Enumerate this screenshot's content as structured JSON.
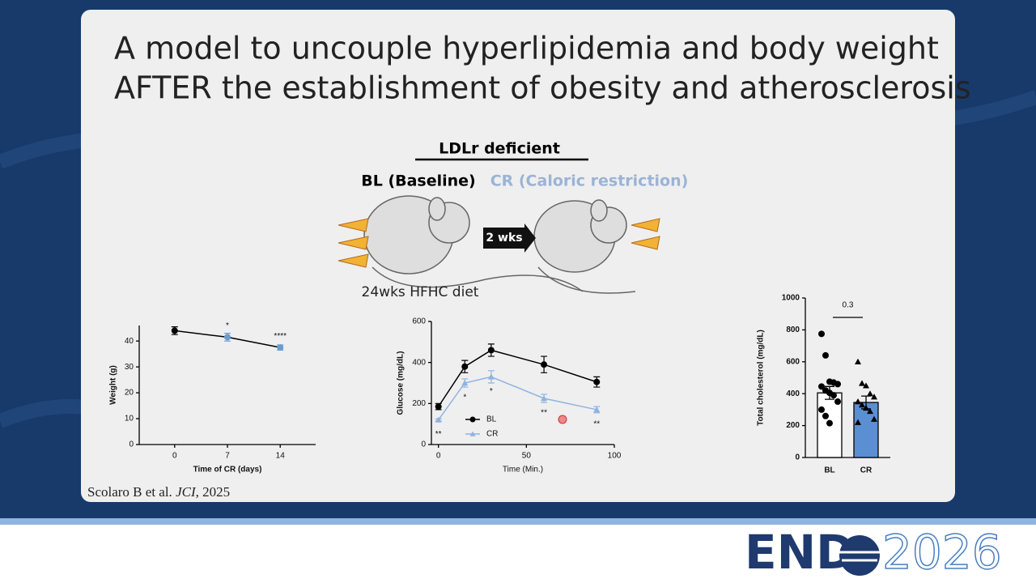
{
  "title_lines": [
    "A model to uncouple hyperlipidemia and body weight",
    "AFTER the establishment of obesity and atherosclerosis"
  ],
  "diagram": {
    "header": "LDLr deficient",
    "left_label": "BL (Baseline)",
    "right_label": "CR (Caloric restriction)",
    "arrow_label": "2 wks",
    "diet_label": "24wks HFHC diet"
  },
  "citation": {
    "authors": "Scolaro B et al.",
    "journal": "JCI",
    "year": ", 2025"
  },
  "logo": {
    "word": "END",
    "year": "2026"
  },
  "chart_data": [
    {
      "type": "line",
      "xlabel": "Time of CR (days)",
      "ylabel": "Weight (g)",
      "xlim": [
        -4.7,
        18.7
      ],
      "xticks": [
        0,
        7,
        14
      ],
      "ylim": [
        0,
        46
      ],
      "yticks": [
        0,
        10,
        20,
        30,
        40
      ],
      "series": [
        {
          "x": [
            0,
            7,
            14
          ],
          "values": [
            44,
            41.5,
            37.5
          ],
          "errors": [
            1.5,
            1.5,
            1
          ],
          "color": "#000000",
          "marker": "circle",
          "marker_colors": [
            "#000000",
            "#6a9bd1",
            "#6a9bd1"
          ]
        }
      ],
      "annotations": [
        {
          "text": "*",
          "x": 7,
          "series": 0,
          "position": "above"
        },
        {
          "text": "****",
          "x": 14,
          "series": 0,
          "position": "above"
        }
      ]
    },
    {
      "type": "line",
      "xlabel": "Time (Min.)",
      "ylabel": "Glucose (mg/dL)",
      "xlim": [
        -4,
        100
      ],
      "xticks": [
        0,
        50,
        100
      ],
      "ylim": [
        0,
        600
      ],
      "yticks": [
        0,
        200,
        400,
        600
      ],
      "legend": "lower left",
      "series": [
        {
          "name": "BL",
          "x": [
            0,
            15,
            30,
            60,
            90
          ],
          "values": [
            185,
            380,
            460,
            390,
            305
          ],
          "errors": [
            15,
            30,
            30,
            40,
            25
          ],
          "color": "#000000",
          "marker": "circle"
        },
        {
          "name": "CR",
          "x": [
            0,
            15,
            30,
            60,
            90
          ],
          "values": [
            120,
            300,
            330,
            225,
            170
          ],
          "errors": [
            5,
            20,
            30,
            20,
            15
          ],
          "color": "#8fb3e0",
          "marker": "triangle"
        }
      ],
      "annotations": [
        {
          "text": "**",
          "x": 0,
          "series": 1,
          "position": "below"
        },
        {
          "text": "*",
          "x": 15,
          "series": 1,
          "position": "below"
        },
        {
          "text": "*",
          "x": 30,
          "series": 1,
          "position": "below"
        },
        {
          "text": "**",
          "x": 60,
          "series": 1,
          "position": "below"
        },
        {
          "text": "**",
          "x": 90,
          "series": 1,
          "position": "below"
        }
      ]
    },
    {
      "type": "bar",
      "ylabel": "Total cholesterol (mg/dL)",
      "categories": [
        "BL",
        "CR"
      ],
      "values": [
        405,
        345
      ],
      "errors": [
        40,
        40
      ],
      "colors": [
        "#ffffff",
        "#5b8fd4"
      ],
      "markers": [
        "circle",
        "triangle"
      ],
      "points": [
        [
          775,
          640,
          475,
          470,
          460,
          445,
          420,
          405,
          390,
          350,
          300,
          260,
          215
        ],
        [
          600,
          465,
          450,
          400,
          380,
          350,
          330,
          310,
          290,
          240,
          220
        ]
      ],
      "ylim": [
        0,
        1000
      ],
      "yticks": [
        0,
        200,
        400,
        600,
        800,
        1000
      ],
      "annotation": "0.3"
    }
  ]
}
